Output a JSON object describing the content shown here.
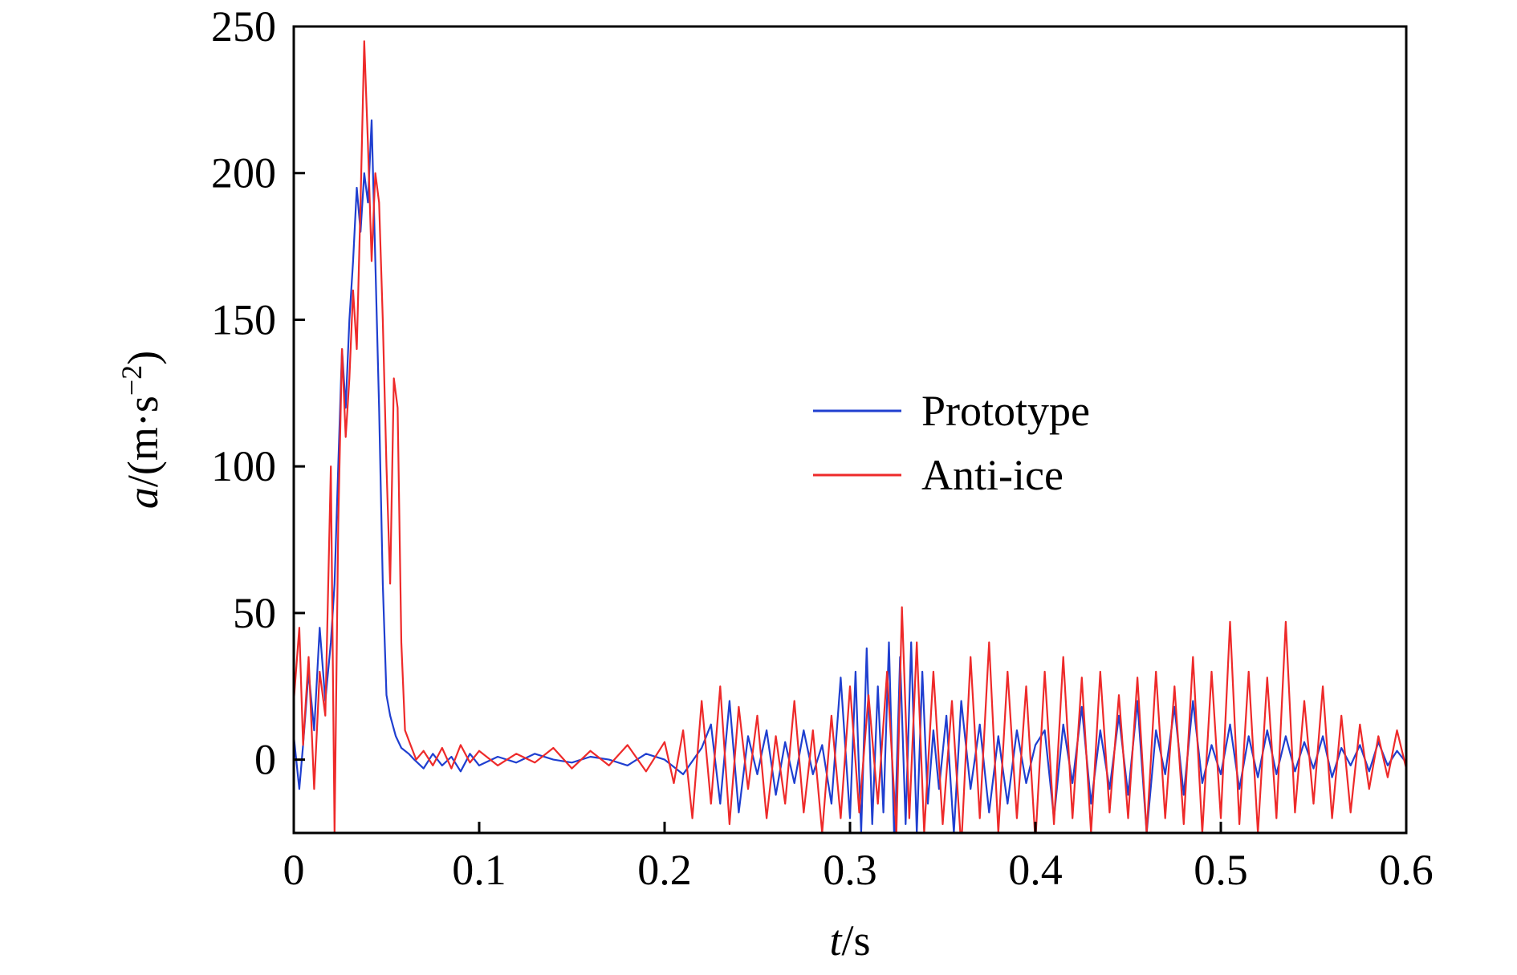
{
  "chart_data": {
    "type": "line",
    "title": "",
    "xlabel": {
      "var": "t",
      "unit": "/s"
    },
    "ylabel": {
      "var": "a",
      "unit_pre": "/(m·s",
      "unit_sup": "−2",
      "unit_post": ")"
    },
    "xlim": [
      0,
      0.6
    ],
    "ylim": [
      -25,
      250
    ],
    "xticks": [
      0,
      0.1,
      0.2,
      0.3,
      0.4,
      0.5,
      0.6
    ],
    "xtick_labels": [
      "0",
      "0.1",
      "0.2",
      "0.3",
      "0.4",
      "0.5",
      "0.6"
    ],
    "yticks": [
      0,
      50,
      100,
      150,
      200,
      250
    ],
    "ytick_labels": [
      "0",
      "50",
      "100",
      "150",
      "200",
      "250"
    ],
    "grid": false,
    "legend": {
      "placement": "center-right",
      "entries": [
        "Prototype",
        "Anti-ice"
      ]
    },
    "series": [
      {
        "name": "Prototype",
        "color": "#1f3fd0",
        "x": [
          0,
          0.003,
          0.005,
          0.008,
          0.011,
          0.014,
          0.017,
          0.02,
          0.022,
          0.024,
          0.026,
          0.028,
          0.03,
          0.032,
          0.034,
          0.036,
          0.038,
          0.04,
          0.042,
          0.044,
          0.046,
          0.048,
          0.05,
          0.052,
          0.055,
          0.058,
          0.062,
          0.065,
          0.07,
          0.075,
          0.08,
          0.085,
          0.09,
          0.095,
          0.1,
          0.11,
          0.12,
          0.13,
          0.14,
          0.15,
          0.16,
          0.17,
          0.18,
          0.19,
          0.2,
          0.21,
          0.22,
          0.225,
          0.23,
          0.235,
          0.24,
          0.245,
          0.25,
          0.255,
          0.26,
          0.265,
          0.27,
          0.275,
          0.28,
          0.285,
          0.29,
          0.295,
          0.3,
          0.303,
          0.306,
          0.309,
          0.312,
          0.315,
          0.318,
          0.321,
          0.324,
          0.327,
          0.33,
          0.333,
          0.336,
          0.339,
          0.342,
          0.345,
          0.348,
          0.352,
          0.356,
          0.36,
          0.365,
          0.37,
          0.375,
          0.38,
          0.385,
          0.39,
          0.395,
          0.4,
          0.405,
          0.41,
          0.415,
          0.42,
          0.425,
          0.43,
          0.435,
          0.44,
          0.445,
          0.45,
          0.455,
          0.46,
          0.465,
          0.47,
          0.475,
          0.48,
          0.485,
          0.49,
          0.495,
          0.5,
          0.505,
          0.51,
          0.515,
          0.52,
          0.525,
          0.53,
          0.535,
          0.54,
          0.545,
          0.55,
          0.555,
          0.56,
          0.565,
          0.57,
          0.575,
          0.58,
          0.585,
          0.59,
          0.595,
          0.6
        ],
        "y": [
          8,
          -10,
          5,
          30,
          10,
          45,
          20,
          40,
          60,
          100,
          140,
          120,
          150,
          170,
          195,
          180,
          200,
          190,
          218,
          170,
          120,
          60,
          22,
          15,
          8,
          4,
          2,
          0,
          -3,
          2,
          -2,
          1,
          -4,
          2,
          -2,
          1,
          -1,
          2,
          0,
          -1,
          1,
          0,
          -2,
          2,
          0,
          -5,
          4,
          12,
          -15,
          20,
          -18,
          8,
          -5,
          10,
          -12,
          6,
          -8,
          10,
          -5,
          5,
          -15,
          28,
          -20,
          30,
          -25,
          38,
          -22,
          25,
          -18,
          40,
          -30,
          35,
          -22,
          40,
          -25,
          30,
          -15,
          10,
          -10,
          15,
          -25,
          20,
          -10,
          12,
          -18,
          8,
          -15,
          10,
          -8,
          5,
          10,
          -20,
          12,
          -8,
          18,
          -15,
          10,
          -10,
          15,
          -12,
          20,
          -25,
          10,
          -5,
          18,
          -12,
          20,
          -8,
          5,
          -5,
          12,
          -10,
          8,
          -6,
          10,
          -5,
          8,
          -4,
          6,
          -3,
          8,
          -6,
          4,
          -2,
          5,
          -4,
          6,
          -2,
          3,
          -1
        ],
        "_": null
      },
      {
        "name": "Anti-ice",
        "color": "#ee2a2a",
        "x": [
          0,
          0.003,
          0.005,
          0.008,
          0.011,
          0.014,
          0.017,
          0.02,
          0.022,
          0.024,
          0.026,
          0.028,
          0.03,
          0.032,
          0.034,
          0.036,
          0.038,
          0.04,
          0.042,
          0.044,
          0.046,
          0.048,
          0.05,
          0.052,
          0.054,
          0.056,
          0.058,
          0.06,
          0.063,
          0.066,
          0.07,
          0.075,
          0.08,
          0.085,
          0.09,
          0.095,
          0.1,
          0.11,
          0.12,
          0.13,
          0.14,
          0.15,
          0.16,
          0.17,
          0.18,
          0.19,
          0.2,
          0.205,
          0.21,
          0.215,
          0.22,
          0.225,
          0.23,
          0.235,
          0.24,
          0.245,
          0.25,
          0.255,
          0.26,
          0.265,
          0.27,
          0.275,
          0.28,
          0.285,
          0.29,
          0.295,
          0.3,
          0.305,
          0.31,
          0.315,
          0.32,
          0.325,
          0.328,
          0.332,
          0.336,
          0.34,
          0.345,
          0.35,
          0.355,
          0.36,
          0.365,
          0.37,
          0.375,
          0.38,
          0.385,
          0.39,
          0.395,
          0.4,
          0.405,
          0.41,
          0.415,
          0.42,
          0.425,
          0.43,
          0.435,
          0.44,
          0.445,
          0.45,
          0.455,
          0.46,
          0.465,
          0.47,
          0.475,
          0.48,
          0.485,
          0.49,
          0.495,
          0.5,
          0.505,
          0.51,
          0.515,
          0.52,
          0.525,
          0.53,
          0.535,
          0.54,
          0.545,
          0.55,
          0.555,
          0.56,
          0.565,
          0.57,
          0.575,
          0.58,
          0.585,
          0.59,
          0.595,
          0.6
        ],
        "y": [
          20,
          45,
          5,
          35,
          -10,
          30,
          15,
          100,
          -25,
          80,
          140,
          110,
          130,
          160,
          140,
          190,
          245,
          210,
          170,
          200,
          190,
          150,
          100,
          60,
          130,
          120,
          40,
          10,
          5,
          0,
          3,
          -2,
          4,
          -3,
          5,
          -1,
          3,
          -2,
          2,
          -1,
          4,
          -3,
          3,
          -2,
          5,
          -4,
          6,
          -8,
          10,
          -20,
          20,
          -15,
          25,
          -22,
          18,
          -10,
          15,
          -20,
          8,
          -15,
          20,
          -18,
          10,
          -25,
          15,
          -20,
          25,
          -18,
          22,
          -15,
          30,
          -25,
          52,
          -20,
          40,
          -25,
          30,
          -22,
          20,
          -30,
          35,
          -20,
          40,
          -25,
          30,
          -20,
          25,
          -28,
          30,
          -22,
          35,
          -20,
          28,
          -25,
          30,
          -18,
          22,
          -20,
          28,
          -25,
          30,
          -20,
          25,
          -22,
          35,
          -25,
          30,
          -20,
          47,
          -22,
          30,
          -25,
          28,
          -20,
          47,
          -18,
          20,
          -15,
          25,
          -20,
          15,
          -18,
          12,
          -10,
          8,
          -6,
          10,
          -3
        ],
        "_": null
      }
    ]
  }
}
